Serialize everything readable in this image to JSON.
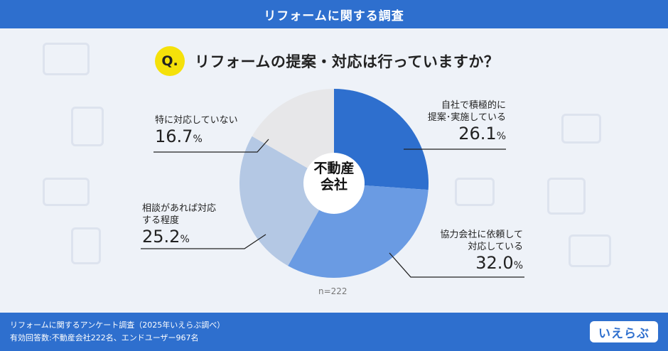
{
  "header": {
    "title": "リフォームに関する調査"
  },
  "question": {
    "badge": "Q.",
    "text": "リフォームの提案・対応は行っていますか？"
  },
  "chart_data": {
    "type": "pie",
    "categories": [
      "自社で積極的に提案・実施している",
      "協力会社に依頼して対応している",
      "相談があれば対応する程度",
      "特に対応していない"
    ],
    "values": [
      26.1,
      32.0,
      25.2,
      16.7
    ],
    "unit": "%",
    "center_label_lines": [
      "不動産",
      "会社"
    ],
    "n_label": "n=222",
    "colors": [
      "#2e6fce",
      "#6a9be3",
      "#b4c8e4",
      "#e7e7e9"
    ],
    "label_lines": [
      [
        "自社で積極的に",
        "提案･実施している"
      ],
      [
        "協力会社に依頼して",
        "対応している"
      ],
      [
        "相談があれば対応",
        "する程度"
      ],
      [
        "特に対応していない"
      ]
    ]
  },
  "footer": {
    "line1": "リフォームに関するアンケート調査（2025年いえらぶ調べ）",
    "line2": "有効回答数:不動産会社222名、エンドユーザー967名",
    "logo": "いえらぶ"
  }
}
